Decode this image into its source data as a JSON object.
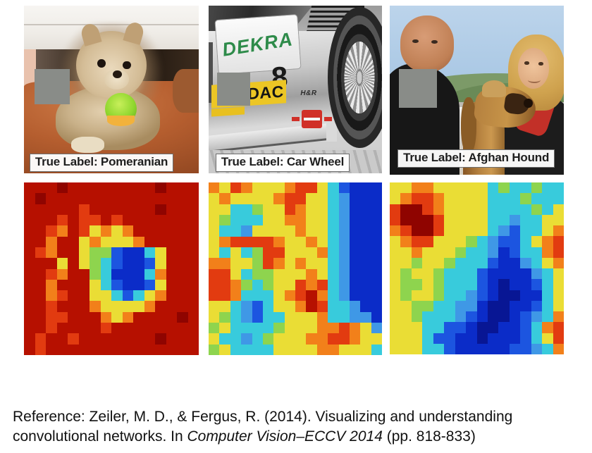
{
  "figure": {
    "columns": [
      {
        "key": "pomeranian",
        "true_label": "True Label: Pomeranian",
        "subject": "pomeranian-puppy-photo-with-gray-occluder"
      },
      {
        "key": "car_wheel",
        "true_label": "True Label: Car Wheel",
        "subject": "race-car-photo-with-gray-occluder",
        "texts": {
          "dekra": "DEKRA",
          "number": "8",
          "adac": "DAC",
          "hr": "H&R"
        }
      },
      {
        "key": "afghan_hound",
        "true_label": "True Label: Afghan Hound",
        "subject": "couple-with-afghan-hound-photo-with-gray-occluder"
      }
    ]
  },
  "heatmaps": {
    "grid_size": 16,
    "palette": {
      "D": "#8f0400",
      "R": "#b61000",
      "r": "#e23b10",
      "o": "#f2801a",
      "y": "#eadd35",
      "g": "#8ed44e",
      "c": "#38cbdc",
      "l": "#3f98e6",
      "b": "#1c55e0",
      "B": "#0b2cc8",
      "N": "#081694"
    },
    "grids": {
      "pomeranian": [
        "RRRDRRRRRRRRDRRR",
        "RDRRRRRRRRRRRRRR",
        "RRRRRrRRRRRRDRRR",
        "RRRrRrrRrRRRRRRR",
        "RRroRryoyoRRRRRR",
        "RRoRRyoyyyoRRRRR",
        "RroRRyggbBBcyRRR",
        "RRRyRygcbBBbyRRR",
        "RRroRRgcBBBcoRRR",
        "RRoRRRycbBBbyRRR",
        "RRorRRyycbcyoRRR",
        "RRrRRRoyyyyoRRRR",
        "RRrrRRRoyoRRRRDR",
        "RRrRRRRrRRRRRRRR",
        "RrRRrRRRRRRRDRRR",
        "RrRRRRRRRRRRRRRR"
      ],
      "car_wheel": [
        "oyroyyyorrycbBBB",
        "yoyyyyorryyclBBB",
        "yyccgyyroyyclBBB",
        "ygcccyyooyyclBBB",
        "ycclyyyyoyyclBBB",
        "yorrrroyyoyclBBB",
        "ycycgrryyyoclBBB",
        "ooyygroyoyyclBBB",
        "rrycggyyyoyclBBB",
        "rrogcgyyrorclBBB",
        "rrocccyorRoclBBB",
        "yyclbcyyoRrcclBB",
        "ygclbccyyyoccllB",
        "gyccccgyyyooroyl",
        "ycclcgyyyoorroyy",
        "gyccccyyyyooyyyc"
      ],
      "afghan_hound": [
        "yyooyyyyycgccgcc",
        "yorroyyyycccgccc",
        "rDDroyyyyccccgcy",
        "rDDDryyyycclccyy",
        "orDDryyyyclbccyo",
        "yorryyygclbbcyor",
        "yyoyyygcclBbccor",
        "yygyygcccbBBlcyo",
        "ygyygcccbBBBBlcy",
        "yggygcccbBNBBbcy",
        "ygyygcclbBNNBBcy",
        "yyggccllBNNBBbcy",
        "yygccclbBNNBblco",
        "yyyccbbBNNBBbcor",
        "yyycbbBBNBBBbcyr",
        "yyyccbBBBBBbblco"
      ]
    }
  },
  "reference": {
    "prefix": "Reference: Zeiler, M. D., & Fergus, R. (2014). Visualizing and understanding convolutional networks. In ",
    "italic": "Computer Vision–ECCV 2014",
    "suffix": " (pp. 818-833)"
  },
  "colors": {
    "occluder": "#898c88",
    "dekra_green": "#2e8b4a",
    "label_text": "#1e1e1e",
    "reference_text": "#111111"
  }
}
